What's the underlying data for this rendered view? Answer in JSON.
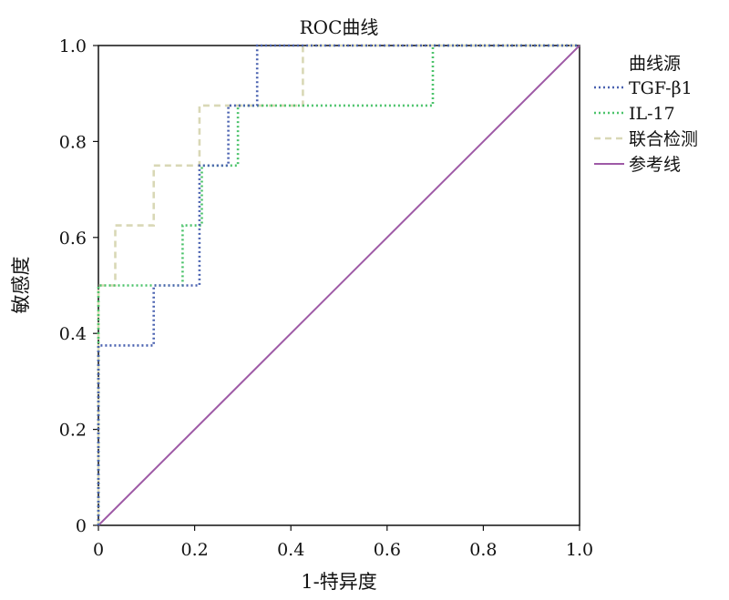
{
  "chart_data": {
    "type": "line",
    "title": "ROC曲线",
    "xlabel": "1-特异度",
    "ylabel": "敏感度",
    "xlim": [
      0,
      1
    ],
    "ylim": [
      0,
      1
    ],
    "x_ticks": [
      0,
      0.2,
      0.4,
      0.6,
      0.8,
      1.0
    ],
    "y_ticks": [
      0,
      0.2,
      0.4,
      0.6,
      0.8,
      1.0
    ],
    "x_tick_labels": [
      "0",
      "0.2",
      "0.4",
      "0.6",
      "0.8",
      "1.0"
    ],
    "y_tick_labels": [
      "0",
      "0.2",
      "0.4",
      "0.6",
      "0.8",
      "1.0"
    ],
    "grid": false,
    "legend": {
      "title": "曲线源",
      "position": "right"
    },
    "series": [
      {
        "name": "TGF-β1",
        "color": "#4a62b0",
        "dash": "dotted",
        "points": [
          [
            0,
            0
          ],
          [
            0,
            0.375
          ],
          [
            0.115,
            0.375
          ],
          [
            0.115,
            0.5
          ],
          [
            0.21,
            0.5
          ],
          [
            0.21,
            0.75
          ],
          [
            0.27,
            0.75
          ],
          [
            0.27,
            0.875
          ],
          [
            0.33,
            0.875
          ],
          [
            0.33,
            1.0
          ],
          [
            1.0,
            1.0
          ]
        ]
      },
      {
        "name": "IL-17",
        "color": "#4cc36b",
        "dash": "dotted",
        "points": [
          [
            0,
            0
          ],
          [
            0,
            0.5
          ],
          [
            0.175,
            0.5
          ],
          [
            0.175,
            0.625
          ],
          [
            0.215,
            0.625
          ],
          [
            0.215,
            0.75
          ],
          [
            0.29,
            0.75
          ],
          [
            0.29,
            0.875
          ],
          [
            0.695,
            0.875
          ],
          [
            0.695,
            1.0
          ],
          [
            1.0,
            1.0
          ]
        ]
      },
      {
        "name": "联合检测",
        "color": "#d9d8b6",
        "dash": "dashed",
        "points": [
          [
            0,
            0
          ],
          [
            0,
            0.5
          ],
          [
            0.035,
            0.5
          ],
          [
            0.035,
            0.625
          ],
          [
            0.115,
            0.625
          ],
          [
            0.115,
            0.75
          ],
          [
            0.21,
            0.75
          ],
          [
            0.21,
            0.875
          ],
          [
            0.425,
            0.875
          ],
          [
            0.425,
            1.0
          ],
          [
            1.0,
            1.0
          ]
        ]
      },
      {
        "name": "参考线",
        "color": "#9e5aa6",
        "dash": "solid",
        "points": [
          [
            0,
            0
          ],
          [
            1,
            1
          ]
        ]
      }
    ]
  }
}
